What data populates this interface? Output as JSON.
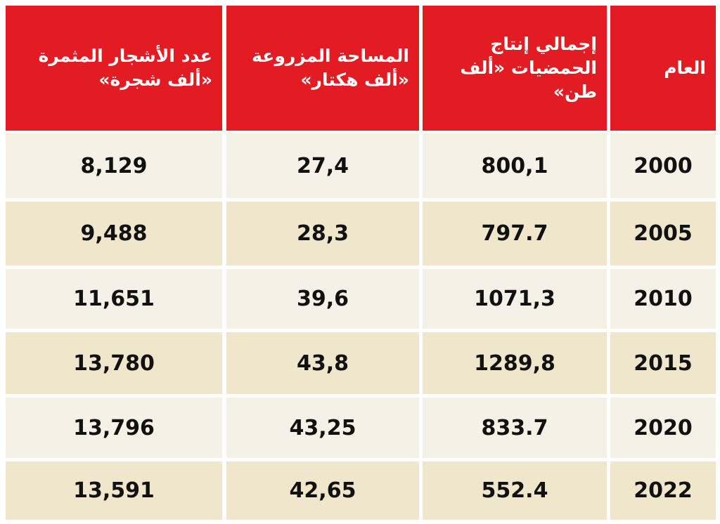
{
  "table": {
    "headers": [
      "العام",
      "إجمالي إنتاج الحمضيات «ألف طن»",
      "المساحة المزروعة «ألف هكتار»",
      "عدد الأشجار المثمرة «ألف شجرة»"
    ],
    "rows": [
      [
        "2000",
        "800,1",
        "27,4",
        "8,129"
      ],
      [
        "2005",
        "797.7",
        "28,3",
        "9,488"
      ],
      [
        "2010",
        "1071,3",
        "39,6",
        "11,651"
      ],
      [
        "2015",
        "1289,8",
        "43,8",
        "13,780"
      ],
      [
        "2020",
        "833.7",
        "43,25",
        "13,796"
      ],
      [
        "2022",
        "552.4",
        "42,65",
        "13,591"
      ]
    ]
  }
}
